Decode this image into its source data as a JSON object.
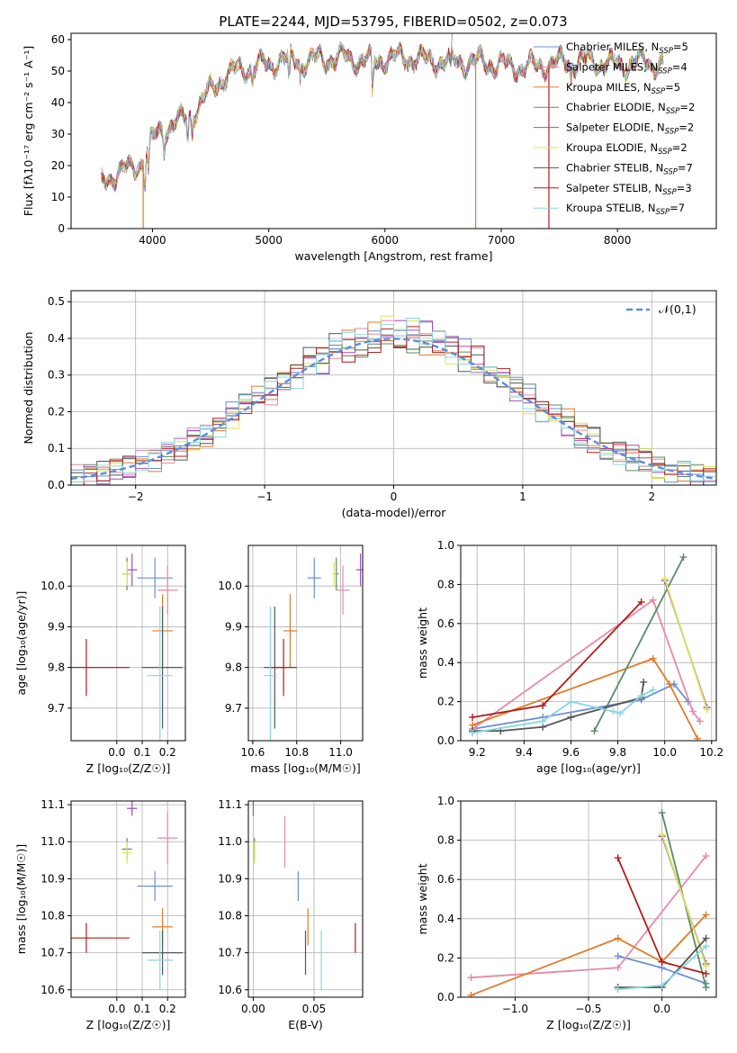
{
  "figure": {
    "title": "PLATE=2244, MJD=53795, FIBERID=0502, z=0.073"
  },
  "colors": {
    "Chabrier MILES": "#6a8fd4",
    "Salpeter MILES": "#e58aa5",
    "Kroupa MILES": "#e07b2a",
    "Chabrier ELODIE": "#5a8a64",
    "Salpeter ELODIE": "#a24cb8",
    "Kroupa ELODIE": "#d7e65a",
    "Chabrier STELIB": "#555555",
    "Salpeter STELIB": "#b01c1c",
    "Kroupa STELIB": "#8ad6df"
  },
  "chart_data": [
    {
      "id": "spectrum",
      "type": "line",
      "title": "PLATE=2244, MJD=53795, FIBERID=0502, z=0.073",
      "xlabel": "wavelength [Angstrom, rest frame]",
      "ylabel": "Flux [fλ10⁻¹⁷ erg cm⁻² s⁻¹ A⁻¹]",
      "xlim": [
        3300,
        8850
      ],
      "ylim": [
        0,
        62
      ],
      "xticks": [
        4000,
        5000,
        6000,
        7000,
        8000
      ],
      "yticks": [
        0,
        10,
        20,
        30,
        40,
        50,
        60
      ],
      "grid": false,
      "legend_position": "top-right",
      "legend": [
        "Chabrier MILES, N_SSP=5",
        "Salpeter MILES, N_SSP=4",
        "Kroupa MILES, N_SSP=5",
        "Chabrier ELODIE, N_SSP=2",
        "Salpeter ELODIE, N_SSP=2",
        "Kroupa ELODIE, N_SSP=2",
        "Chabrier STELIB, N_SSP=7",
        "Salpeter STELIB, N_SSP=3",
        "Kroupa STELIB, N_SSP=7"
      ],
      "continuum_x": [
        3560,
        3700,
        3850,
        3920,
        4000,
        4100,
        4300,
        4400,
        4500,
        4600,
        4800,
        5000,
        5100,
        5300,
        5500,
        5700,
        5900,
        6000,
        6200,
        6500,
        6800,
        7000,
        7200,
        7400,
        7600,
        7800,
        8000,
        8200,
        8400
      ],
      "continuum_y": [
        14,
        18,
        19,
        22,
        28,
        32,
        35,
        39,
        44,
        48,
        51,
        52,
        54,
        53,
        54,
        54,
        53,
        54,
        54,
        53,
        53,
        52,
        51,
        52,
        53,
        53,
        52,
        53,
        52
      ]
    },
    {
      "id": "residuals",
      "type": "area",
      "xlabel": "(data-model)/error",
      "ylabel": "Normed distribution",
      "xlim": [
        -2.5,
        2.5
      ],
      "ylim": [
        0,
        0.53
      ],
      "xticks": [
        -2,
        -1,
        0,
        1,
        2
      ],
      "yticks": [
        0.0,
        0.1,
        0.2,
        0.3,
        0.4,
        0.5
      ],
      "grid": true,
      "legend_position": "top-right",
      "legend": [
        "𝒩(0,1)"
      ]
    },
    {
      "id": "age-vs-Z",
      "type": "scatter",
      "xlabel": "Z [log₁₀(Z/Z☉)]",
      "ylabel": "age  [log₁₀(age/yr)]",
      "xlim": [
        -0.18,
        0.27
      ],
      "ylim": [
        9.62,
        10.1
      ],
      "xticks": [
        0.0,
        0.1,
        0.2
      ],
      "yticks": [
        9.7,
        9.8,
        9.9,
        10.0
      ],
      "grid": true
    },
    {
      "id": "age-vs-mass",
      "type": "scatter",
      "xlabel": "mass [log₁₀(M/M☉)]",
      "xlim": [
        10.58,
        11.1
      ],
      "ylim": [
        9.62,
        10.1
      ],
      "xticks": [
        10.6,
        10.8,
        11.0
      ],
      "yticks": [
        9.7,
        9.8,
        9.9,
        10.0
      ],
      "grid": true
    },
    {
      "id": "weight-vs-age",
      "type": "line",
      "xlabel": "age  [log₁₀(age/yr)]",
      "ylabel": "mass weight",
      "xlim": [
        9.13,
        10.22
      ],
      "ylim": [
        0,
        1
      ],
      "xticks": [
        9.2,
        9.4,
        9.6,
        9.8,
        10.0,
        10.2
      ],
      "yticks": [
        0.0,
        0.2,
        0.4,
        0.6,
        0.8,
        1.0
      ],
      "grid": true,
      "series": [
        {
          "name": "Chabrier MILES",
          "x": [
            9.18,
            9.48,
            9.9,
            10.04,
            10.1
          ],
          "y": [
            0.06,
            0.12,
            0.21,
            0.29,
            0.2
          ]
        },
        {
          "name": "Salpeter MILES",
          "x": [
            9.18,
            9.95,
            10.12,
            10.15
          ],
          "y": [
            0.06,
            0.72,
            0.15,
            0.1
          ]
        },
        {
          "name": "Kroupa MILES",
          "x": [
            9.18,
            9.95,
            10.02,
            10.14
          ],
          "y": [
            0.08,
            0.42,
            0.29,
            0.01
          ]
        },
        {
          "name": "Chabrier ELODIE",
          "x": [
            9.7,
            10.08
          ],
          "y": [
            0.05,
            0.94
          ]
        },
        {
          "name": "Salpeter ELODIE",
          "x": [
            10.0,
            10.18
          ],
          "y": [
            0.82,
            0.17
          ]
        },
        {
          "name": "Kroupa ELODIE",
          "x": [
            10.0,
            10.18
          ],
          "y": [
            0.83,
            0.16
          ]
        },
        {
          "name": "Chabrier STELIB",
          "x": [
            9.18,
            9.3,
            9.48,
            9.6,
            9.9,
            9.91
          ],
          "y": [
            0.05,
            0.05,
            0.07,
            0.12,
            0.22,
            0.3
          ]
        },
        {
          "name": "Salpeter STELIB",
          "x": [
            9.18,
            9.48,
            9.9
          ],
          "y": [
            0.12,
            0.18,
            0.71
          ]
        },
        {
          "name": "Kroupa STELIB",
          "x": [
            9.18,
            9.48,
            9.6,
            9.78,
            9.81,
            9.9,
            9.95
          ],
          "y": [
            0.04,
            0.1,
            0.2,
            0.15,
            0.14,
            0.23,
            0.26
          ]
        }
      ]
    },
    {
      "id": "mass-vs-Z",
      "type": "scatter",
      "xlabel": "Z [log₁₀(Z/Z☉)]",
      "ylabel": "mass [log₁₀(M/M☉)]",
      "xlim": [
        -0.18,
        0.27
      ],
      "ylim": [
        10.58,
        11.11
      ],
      "xticks": [
        0.0,
        0.1,
        0.2
      ],
      "yticks": [
        10.6,
        10.7,
        10.8,
        10.9,
        11.0,
        11.1
      ],
      "grid": true
    },
    {
      "id": "mass-vs-EBV",
      "type": "scatter",
      "xlabel": "E(B-V)",
      "xlim": [
        -0.004,
        0.09
      ],
      "ylim": [
        10.58,
        11.11
      ],
      "xticks": [
        0.0,
        0.05
      ],
      "yticks": [
        10.6,
        10.7,
        10.8,
        10.9,
        11.0,
        11.1
      ],
      "grid": true,
      "series": [
        {
          "name": "Chabrier MILES",
          "x": 0.037,
          "y": 10.88
        },
        {
          "name": "Salpeter MILES",
          "x": 0.026,
          "y": 11.0
        },
        {
          "name": "Kroupa MILES",
          "x": 0.045,
          "y": 10.77
        },
        {
          "name": "Chabrier ELODIE",
          "x": 0.001,
          "y": 10.98
        },
        {
          "name": "Salpeter ELODIE",
          "x": 0.0,
          "y": 11.09
        },
        {
          "name": "Kroupa ELODIE",
          "x": 0.001,
          "y": 10.97
        },
        {
          "name": "Chabrier STELIB",
          "x": 0.043,
          "y": 10.7
        },
        {
          "name": "Salpeter STELIB",
          "x": 0.084,
          "y": 10.74
        },
        {
          "name": "Kroupa STELIB",
          "x": 0.056,
          "y": 10.68
        }
      ]
    },
    {
      "id": "weight-vs-Z",
      "type": "line",
      "xlabel": "Z [log₁₀(Z/Z☉)]",
      "ylabel": "mass weight",
      "xlim": [
        -1.37,
        0.37
      ],
      "ylim": [
        0,
        1
      ],
      "xticks": [
        -1.0,
        -0.5,
        0.0
      ],
      "yticks": [
        0.0,
        0.2,
        0.4,
        0.6,
        0.8,
        1.0
      ],
      "grid": true,
      "series": [
        {
          "name": "Chabrier MILES",
          "x": [
            -0.3,
            0.0,
            0.3
          ],
          "y": [
            0.21,
            0.15,
            0.07
          ]
        },
        {
          "name": "Salpeter MILES",
          "x": [
            -1.3,
            -0.3,
            0.3
          ],
          "y": [
            0.1,
            0.15,
            0.72
          ]
        },
        {
          "name": "Kroupa MILES",
          "x": [
            -1.3,
            -0.3,
            0.0,
            0.3
          ],
          "y": [
            0.01,
            0.3,
            0.18,
            0.42
          ]
        },
        {
          "name": "Chabrier ELODIE",
          "x": [
            0.0,
            0.3
          ],
          "y": [
            0.94,
            0.05
          ]
        },
        {
          "name": "Salpeter ELODIE",
          "x": [
            0.0,
            0.3
          ],
          "y": [
            0.82,
            0.17
          ]
        },
        {
          "name": "Kroupa ELODIE",
          "x": [
            0.0,
            0.3
          ],
          "y": [
            0.83,
            0.16
          ]
        },
        {
          "name": "Chabrier STELIB",
          "x": [
            -0.3,
            0.0,
            0.3
          ],
          "y": [
            0.05,
            0.05,
            0.3
          ]
        },
        {
          "name": "Salpeter STELIB",
          "x": [
            -0.3,
            0.0,
            0.3
          ],
          "y": [
            0.71,
            0.18,
            0.12
          ]
        },
        {
          "name": "Kroupa STELIB",
          "x": [
            -0.3,
            0.0,
            0.3
          ],
          "y": [
            0.04,
            0.06,
            0.26
          ]
        }
      ]
    }
  ]
}
